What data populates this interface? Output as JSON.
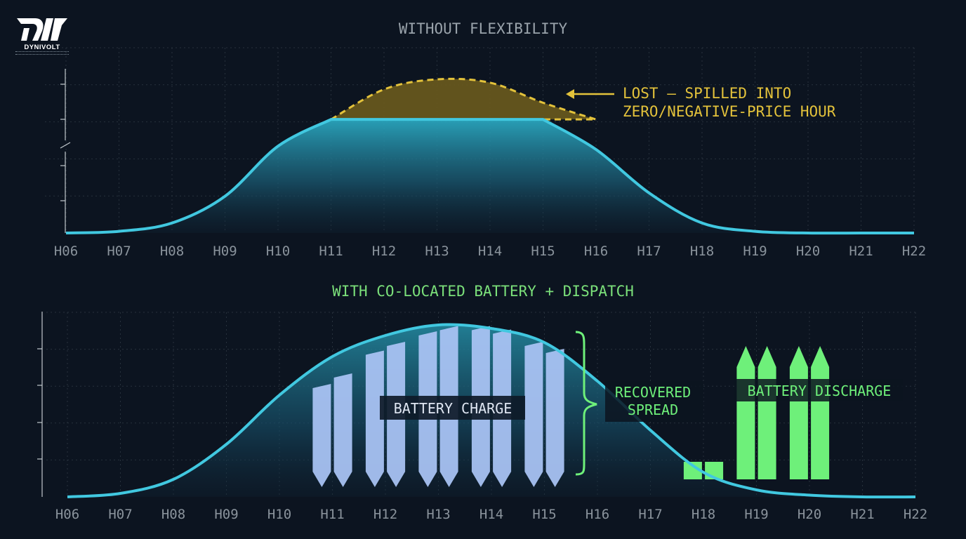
{
  "logo": {
    "name": "DYNIVOLT"
  },
  "colors": {
    "background": "#0c1420",
    "grid": "#27313c",
    "curve": "#41c8e0",
    "lost": "#e3c23b",
    "lost_fill": "#6a5a1d",
    "charge": "#a8c2f2",
    "discharge": "#6ef07a",
    "tick_label": "#8a939c",
    "title_top": "#9aa3ab",
    "title_bottom": "#7be07a"
  },
  "chart_data": [
    {
      "type": "area",
      "title": "WITHOUT FLEXIBILITY",
      "x": [
        "H06",
        "H07",
        "H08",
        "H09",
        "H10",
        "H11",
        "H12",
        "H13",
        "H14",
        "H15",
        "H16",
        "H17",
        "H18",
        "H19",
        "H20",
        "H21",
        "H22"
      ],
      "ylim": [
        0,
        1
      ],
      "grid": true,
      "series": [
        {
          "values": [
            0,
            0.01,
            0.06,
            0.22,
            0.52,
            0.68,
            0.68,
            0.68,
            0.68,
            0.68,
            0.5,
            0.24,
            0.06,
            0.01,
            0,
            0,
            0
          ]
        },
        {
          "values": [
            null,
            null,
            null,
            null,
            null,
            0.68,
            0.86,
            0.92,
            0.9,
            0.78,
            0.68,
            null,
            null,
            null,
            null,
            null,
            null
          ]
        }
      ],
      "annotations": [
        {
          "text_lines": [
            "LOST — SPILLED INTO",
            "ZERO/NEGATIVE-PRICE HOUR"
          ]
        }
      ]
    },
    {
      "type": "area",
      "title": "WITH CO-LOCATED BATTERY + DISPATCH",
      "x": [
        "H06",
        "H07",
        "H08",
        "H09",
        "H10",
        "H11",
        "H12",
        "H13",
        "H14",
        "H15",
        "H16",
        "H17",
        "H18",
        "H19",
        "H20",
        "H21",
        "H22"
      ],
      "ylim": [
        0,
        1
      ],
      "grid": true,
      "series": [
        {
          "values": [
            0,
            0.02,
            0.1,
            0.3,
            0.58,
            0.8,
            0.92,
            0.98,
            0.96,
            0.88,
            0.66,
            0.38,
            0.14,
            0.04,
            0.01,
            0,
            0
          ]
        }
      ],
      "charge_bars": {
        "label": "BATTERY CHARGE",
        "x": [
          10.8,
          11.2,
          11.8,
          12.2,
          12.8,
          13.2,
          13.8,
          14.2,
          14.8,
          15.2
        ],
        "top": [
          0.62,
          0.68,
          0.81,
          0.86,
          0.92,
          0.95,
          0.95,
          0.93,
          0.86,
          0.82
        ],
        "bottom": 0.04
      },
      "discharge_bars": {
        "label": "BATTERY DISCHARGE",
        "x": [
          17.8,
          18.2,
          18.8,
          19.2,
          19.8,
          20.2
        ],
        "top": [
          0.2,
          0.2,
          0.86,
          0.86,
          0.86,
          0.86
        ],
        "arrow": [
          false,
          false,
          true,
          true,
          true,
          true
        ],
        "bottom": 0.1
      },
      "brace": {
        "from_x": 15.7,
        "label_lines": [
          "RECOVERED",
          "SPREAD"
        ]
      }
    }
  ]
}
